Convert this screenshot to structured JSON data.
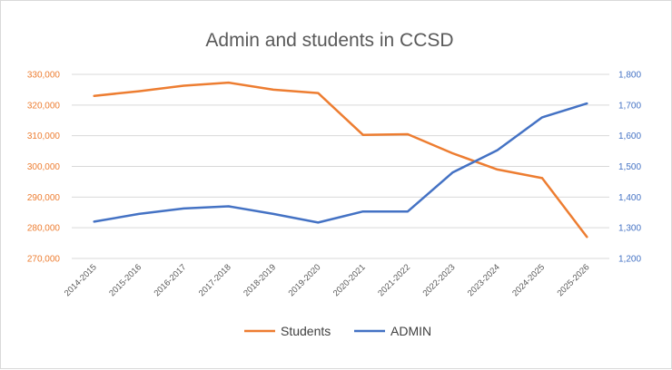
{
  "chart_data": {
    "type": "line",
    "title": "Admin and students in CCSD",
    "categories": [
      "2014-2015",
      "2015-2016",
      "2016-2017",
      "2017-2018",
      "2018-2019",
      "2019-2020",
      "2020-2021",
      "2021-2022",
      "2022-2023",
      "2023-2024",
      "2024-2025",
      "2025-2026"
    ],
    "series": [
      {
        "name": "Students",
        "axis": "left",
        "color": "#ED7D31",
        "values": [
          323000,
          324500,
          326300,
          327300,
          325000,
          323900,
          310300,
          310500,
          304300,
          299000,
          296200,
          277000
        ]
      },
      {
        "name": "ADMIN",
        "axis": "right",
        "color": "#4472C4",
        "values": [
          1320,
          1345,
          1363,
          1370,
          1345,
          1317,
          1353,
          1353,
          1480,
          1553,
          1660,
          1705
        ]
      }
    ],
    "y_left": {
      "ylim": [
        270000,
        330000
      ],
      "ticks": [
        270000,
        280000,
        290000,
        300000,
        310000,
        320000,
        330000
      ],
      "tick_labels": [
        "270,000",
        "280,000",
        "290,000",
        "300,000",
        "310,000",
        "320,000",
        "330,000"
      ],
      "color": "#ED7D31"
    },
    "y_right": {
      "ylim": [
        1200,
        1800
      ],
      "ticks": [
        1200,
        1300,
        1400,
        1500,
        1600,
        1700,
        1800
      ],
      "tick_labels": [
        "1,200",
        "1,300",
        "1,400",
        "1,500",
        "1,600",
        "1,700",
        "1,800"
      ],
      "color": "#4472C4"
    },
    "grid": true,
    "legend": "bottom"
  }
}
